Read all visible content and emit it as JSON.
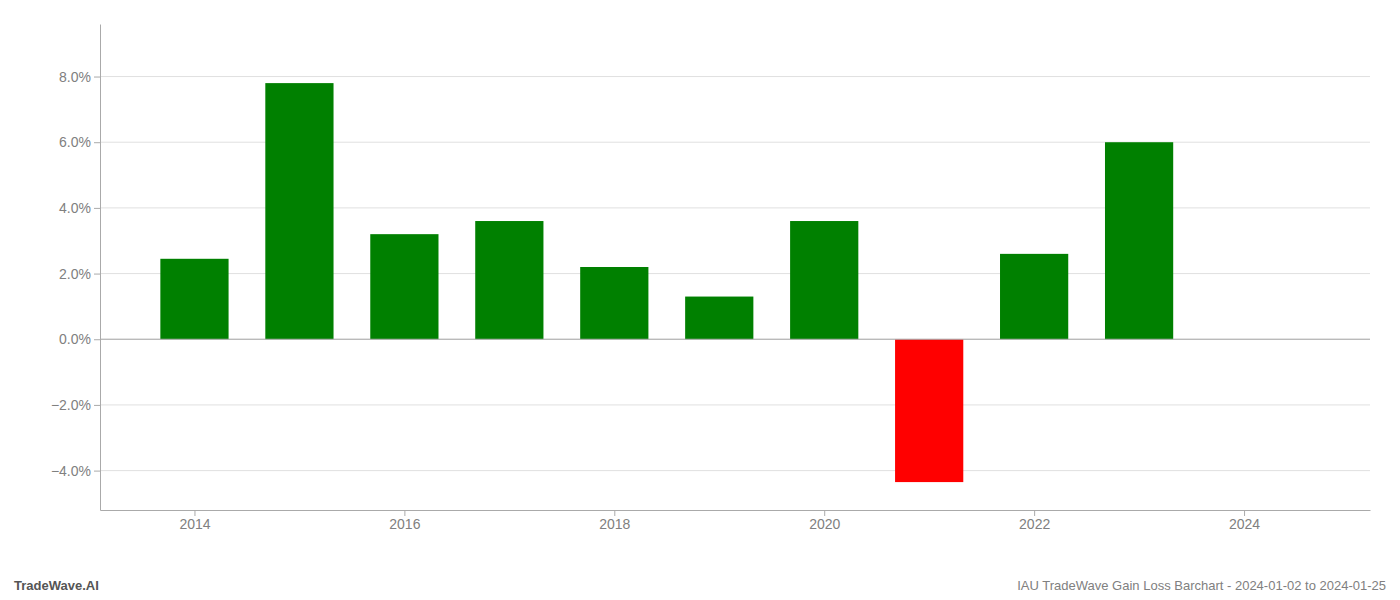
{
  "chart_data": {
    "type": "bar",
    "x": [
      2014,
      2015,
      2016,
      2017,
      2018,
      2019,
      2020,
      2021,
      2022,
      2023
    ],
    "values": [
      0.0245,
      0.078,
      0.032,
      0.036,
      0.022,
      0.013,
      0.036,
      -0.0435,
      0.026,
      0.06
    ],
    "colors": [
      "#008000",
      "#008000",
      "#008000",
      "#008000",
      "#008000",
      "#008000",
      "#008000",
      "#ff0000",
      "#008000",
      "#008000"
    ],
    "xlim": [
      2013.1,
      2025.2
    ],
    "xticks": [
      2014,
      2016,
      2018,
      2020,
      2022,
      2024
    ],
    "ylim": [
      -0.052,
      0.096
    ],
    "yticks": [
      {
        "value": -0.04,
        "label": "−4.0%"
      },
      {
        "value": -0.02,
        "label": "−2.0%"
      },
      {
        "value": 0.0,
        "label": "0.0%"
      },
      {
        "value": 0.02,
        "label": "2.0%"
      },
      {
        "value": 0.04,
        "label": "4.0%"
      },
      {
        "value": 0.06,
        "label": "6.0%"
      },
      {
        "value": 0.08,
        "label": "8.0%"
      }
    ],
    "grid": "y",
    "annotations": [
      "TradeWave.AI",
      "IAU TradeWave Gain Loss Barchart - 2024-01-02 to 2024-01-25"
    ]
  }
}
